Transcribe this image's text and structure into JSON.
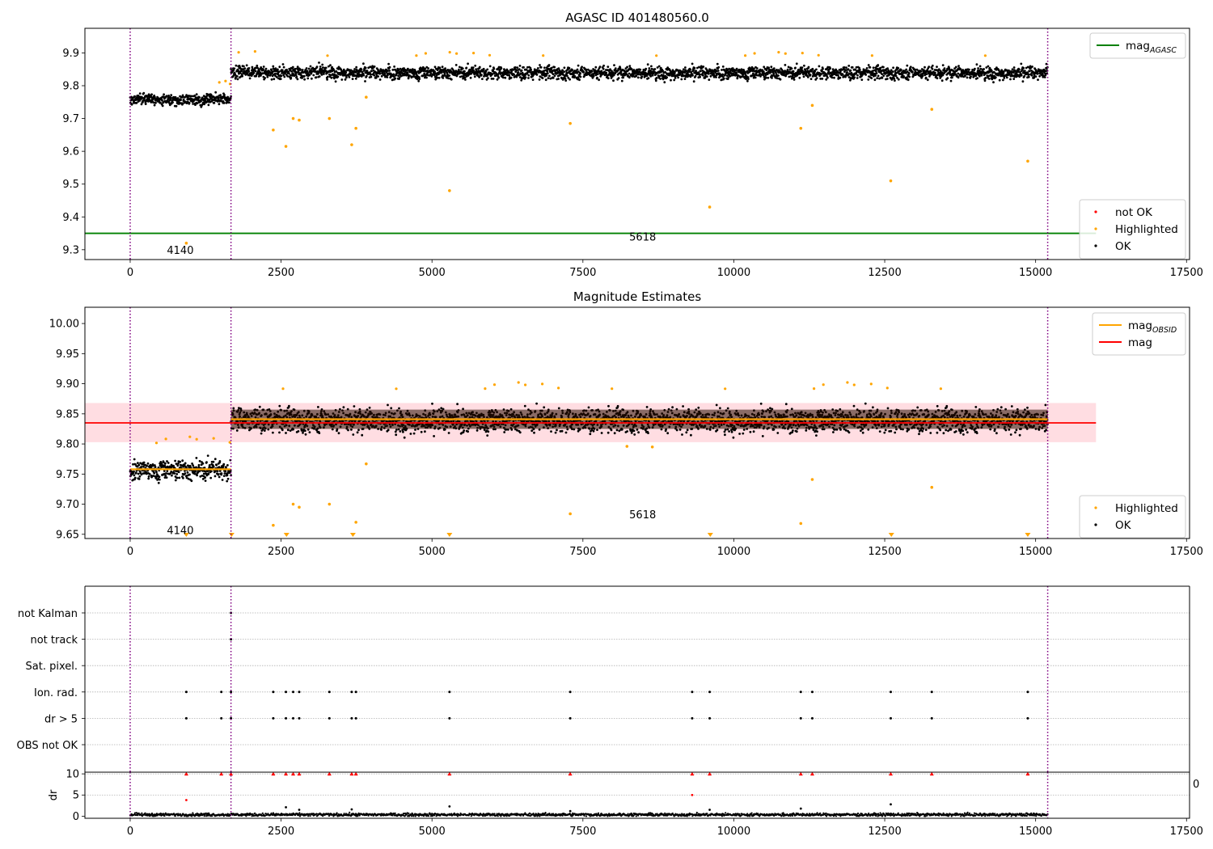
{
  "colors": {
    "ok": "#000000",
    "highlighted": "#ffa500",
    "not_ok": "#ff0000",
    "agasc_line": "#008000",
    "obsid_line": "#ffa500",
    "mag_line": "#ff0000",
    "mag_band": "#ffdde2",
    "obs_boundary": "#800080",
    "dense_band_mid": "#2a0d00"
  },
  "chart_data": [
    {
      "type": "scatter",
      "title": "AGASC ID 401480560.0",
      "xlabel": "",
      "ylabel": "",
      "xlim": [
        -750,
        17550
      ],
      "ylim": [
        9.27,
        9.975
      ],
      "xticks": [
        0,
        2500,
        5000,
        7500,
        10000,
        12500,
        15000,
        17500
      ],
      "xtick_labels": [
        "0",
        "2500",
        "5000",
        "7500",
        "10000",
        "12500",
        "15000",
        "17500"
      ],
      "yticks": [
        9.3,
        9.4,
        9.5,
        9.6,
        9.7,
        9.8,
        9.9
      ],
      "ytick_labels": [
        "9.3",
        "9.4",
        "9.5",
        "9.6",
        "9.7",
        "9.8",
        "9.9"
      ],
      "grid": false,
      "obs_boundaries": [
        0,
        1670,
        15200
      ],
      "segment_labels": [
        {
          "x": 830,
          "y": 9.3,
          "text": "4140"
        },
        {
          "x": 8490,
          "y": 9.34,
          "text": "5618"
        }
      ],
      "lines": [
        {
          "name": "mag_AGASC",
          "y": 9.35,
          "x_range": [
            -750,
            16000
          ],
          "color": "agasc_line"
        }
      ],
      "ok_segments": [
        {
          "x_range": [
            0,
            1670
          ],
          "mean": 9.758,
          "spread": 0.012
        },
        {
          "x_range": [
            1670,
            15200
          ],
          "mean": 9.841,
          "spread": 0.014
        }
      ],
      "highlighted_outliers": [
        {
          "x": 930,
          "y": 9.32
        },
        {
          "x": 2370,
          "y": 9.665
        },
        {
          "x": 2580,
          "y": 9.615
        },
        {
          "x": 2700,
          "y": 9.7
        },
        {
          "x": 2800,
          "y": 9.695
        },
        {
          "x": 3300,
          "y": 9.7
        },
        {
          "x": 3670,
          "y": 9.62
        },
        {
          "x": 3740,
          "y": 9.67
        },
        {
          "x": 3910,
          "y": 9.765
        },
        {
          "x": 5290,
          "y": 9.48
        },
        {
          "x": 7290,
          "y": 9.685
        },
        {
          "x": 9600,
          "y": 9.43
        },
        {
          "x": 11110,
          "y": 9.67
        },
        {
          "x": 11300,
          "y": 9.74
        },
        {
          "x": 12600,
          "y": 9.51
        },
        {
          "x": 13280,
          "y": 9.728
        },
        {
          "x": 14870,
          "y": 9.57
        }
      ],
      "legends": [
        {
          "location": "upper-right",
          "entries": [
            {
              "label": "mag",
              "subscript": "AGASC",
              "marker": "line",
              "color": "agasc_line"
            }
          ]
        },
        {
          "location": "lower-right",
          "entries": [
            {
              "label": "not OK",
              "marker": "dot",
              "color": "not_ok"
            },
            {
              "label": "Highlighted",
              "marker": "dot",
              "color": "highlighted"
            },
            {
              "label": "OK",
              "marker": "dot",
              "color": "ok"
            }
          ]
        }
      ]
    },
    {
      "type": "scatter",
      "title": "Magnitude Estimates",
      "xlabel": "",
      "ylabel": "",
      "xlim": [
        -750,
        17550
      ],
      "ylim": [
        9.643,
        10.027
      ],
      "xticks": [
        0,
        2500,
        5000,
        7500,
        10000,
        12500,
        15000,
        17500
      ],
      "xtick_labels": [
        "0",
        "2500",
        "5000",
        "7500",
        "10000",
        "12500",
        "15000",
        "17500"
      ],
      "yticks": [
        9.65,
        9.7,
        9.75,
        9.8,
        9.85,
        9.9,
        9.95,
        10.0
      ],
      "ytick_labels": [
        "9.65",
        "9.70",
        "9.75",
        "9.80",
        "9.85",
        "9.90",
        "9.95",
        "10.00"
      ],
      "grid": false,
      "obs_boundaries": [
        0,
        1670,
        15200
      ],
      "segment_labels": [
        {
          "x": 830,
          "y": 9.657,
          "text": "4140"
        },
        {
          "x": 8490,
          "y": 9.683,
          "text": "5618"
        }
      ],
      "mag_band": {
        "x_range": [
          -750,
          16000
        ],
        "y_range": [
          9.803,
          9.868
        ]
      },
      "lines": [
        {
          "name": "mag",
          "y": 9.835,
          "x_range": [
            -750,
            16000
          ],
          "color": "mag_line"
        },
        {
          "name": "mag_OBSID",
          "y": 9.758,
          "x_range": [
            0,
            1670
          ],
          "color": "obsid_line"
        },
        {
          "name": "mag_OBSID",
          "y": 9.841,
          "x_range": [
            1670,
            15200
          ],
          "color": "obsid_line"
        }
      ],
      "ok_segments": [
        {
          "x_range": [
            0,
            1670
          ],
          "mean": 9.758,
          "spread": 0.012
        },
        {
          "x_range": [
            1670,
            15200
          ],
          "mean": 9.841,
          "spread": 0.014
        }
      ],
      "highlighted_outliers": [
        {
          "x": 2370,
          "y": 9.665
        },
        {
          "x": 2700,
          "y": 9.7
        },
        {
          "x": 2800,
          "y": 9.695
        },
        {
          "x": 3300,
          "y": 9.7
        },
        {
          "x": 3740,
          "y": 9.67
        },
        {
          "x": 3910,
          "y": 9.767
        },
        {
          "x": 7290,
          "y": 9.684
        },
        {
          "x": 11110,
          "y": 9.668
        },
        {
          "x": 11300,
          "y": 9.741
        },
        {
          "x": 13280,
          "y": 9.728
        },
        {
          "x": 8230,
          "y": 9.796
        },
        {
          "x": 8650,
          "y": 9.795
        }
      ],
      "below_range_markers": [
        930,
        1680,
        2590,
        3690,
        5290,
        9610,
        12610,
        14870
      ],
      "legends": [
        {
          "location": "upper-right",
          "entries": [
            {
              "label": "mag",
              "subscript": "OBSID",
              "marker": "line",
              "color": "obsid_line"
            },
            {
              "label": "mag",
              "marker": "line",
              "color": "mag_line"
            }
          ]
        },
        {
          "location": "lower-right",
          "entries": [
            {
              "label": "Highlighted",
              "marker": "dot",
              "color": "highlighted"
            },
            {
              "label": "OK",
              "marker": "dot",
              "color": "ok"
            }
          ]
        }
      ]
    },
    {
      "type": "scatter",
      "title": "",
      "xlabel": "",
      "ylabel": "",
      "xlim": [
        -750,
        17550
      ],
      "grid": true,
      "obs_boundaries": [
        0,
        1670,
        15200
      ],
      "flag_rows": [
        "not Kalman",
        "not track",
        "Sat. pixel.",
        "Ion. rad.",
        "dr > 5",
        "OBS not OK"
      ],
      "flag_events": {
        "not Kalman": [
          1670
        ],
        "not track": [
          1670
        ],
        "Sat. pixel.": [],
        "Ion. rad.": [
          930,
          1510,
          1670,
          2370,
          2580,
          2700,
          2800,
          3300,
          3670,
          3740,
          5290,
          7290,
          9310,
          9600,
          11110,
          11300,
          12600,
          13280,
          14870
        ],
        "dr > 5": [
          930,
          1510,
          1670,
          2370,
          2580,
          2700,
          2800,
          3300,
          3670,
          3740,
          5290,
          7290,
          9310,
          9600,
          11110,
          11300,
          12600,
          13280,
          14870
        ],
        "OBS not OK": []
      }
    },
    {
      "type": "scatter",
      "title": "",
      "xlabel": "",
      "ylabel": "dr",
      "xlim": [
        -750,
        17550
      ],
      "ylim": [
        -0.5,
        10.4
      ],
      "xticks": [
        0,
        2500,
        5000,
        7500,
        10000,
        12500,
        15000,
        17500
      ],
      "xtick_labels": [
        "0",
        "2500",
        "5000",
        "7500",
        "10000",
        "12500",
        "15000",
        "17500"
      ],
      "yticks": [
        0,
        5,
        10
      ],
      "ytick_labels": [
        "0",
        "5",
        "10"
      ],
      "grid": true,
      "obs_boundaries": [
        0,
        1670,
        15200
      ],
      "clipped_marker_y": 10,
      "clipped_events": [
        930,
        1510,
        1670,
        2370,
        2580,
        2700,
        2800,
        3300,
        3670,
        3740,
        5290,
        7290,
        9310,
        9600,
        11110,
        11300,
        12600,
        13280,
        14870
      ],
      "dr_outliers": [
        {
          "x": 930,
          "y": 3.8,
          "color": "not_ok"
        },
        {
          "x": 9310,
          "y": 5.0,
          "color": "not_ok"
        },
        {
          "x": 2580,
          "y": 2.1,
          "color": "ok"
        },
        {
          "x": 5290,
          "y": 2.3,
          "color": "ok"
        },
        {
          "x": 12600,
          "y": 2.8,
          "color": "ok"
        },
        {
          "x": 11110,
          "y": 1.8,
          "color": "ok"
        },
        {
          "x": 3670,
          "y": 1.6,
          "color": "ok"
        },
        {
          "x": 2800,
          "y": 1.5,
          "color": "ok"
        },
        {
          "x": 7290,
          "y": 1.2,
          "color": "ok"
        },
        {
          "x": 9600,
          "y": 1.5,
          "color": "ok"
        }
      ],
      "baseline": {
        "x_range": [
          0,
          15200
        ],
        "mean": 0.35,
        "spread": 0.25
      },
      "edge_fragment": "0"
    }
  ]
}
